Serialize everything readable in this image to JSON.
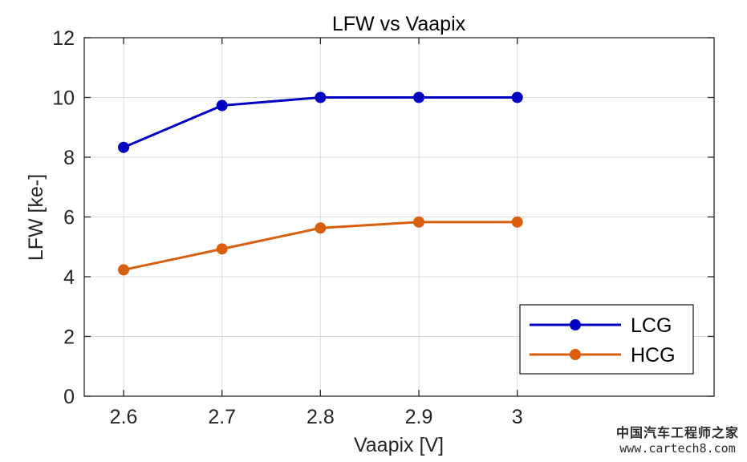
{
  "chart_data": {
    "type": "line",
    "title": "LFW vs Vaapix",
    "xlabel": "Vaapix [V]",
    "ylabel": "LFW [ke-]",
    "x": [
      2.6,
      2.7,
      2.8,
      2.9,
      3.0
    ],
    "xlim": [
      2.56,
      3.2
    ],
    "ylim": [
      0,
      12
    ],
    "xticks": [
      2.6,
      2.7,
      2.8,
      2.9,
      3.0
    ],
    "xtick_labels": [
      "2.6",
      "2.7",
      "2.8",
      "2.9",
      "3"
    ],
    "yticks": [
      0,
      2,
      4,
      6,
      8,
      10,
      12
    ],
    "ytick_labels": [
      "0",
      "2",
      "4",
      "6",
      "8",
      "10",
      "12"
    ],
    "grid": true,
    "legend_position": "bottom-right",
    "series": [
      {
        "name": "LCG",
        "color": "#0000c0",
        "values": [
          8.33,
          9.73,
          10.0,
          10.0,
          10.0
        ]
      },
      {
        "name": "HCG",
        "color": "#d95f0e",
        "values": [
          4.23,
          4.93,
          5.63,
          5.83,
          5.83
        ]
      }
    ]
  },
  "watermark": {
    "line1": "中国汽车工程师之家",
    "line2": "www.cartech8.com"
  }
}
